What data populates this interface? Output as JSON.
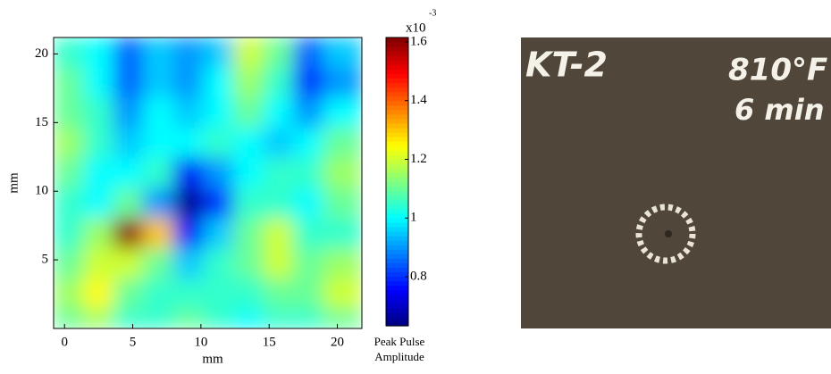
{
  "chart_data": {
    "type": "heatmap",
    "colormap": "jet",
    "xlabel": "mm",
    "ylabel": "mm",
    "x": [
      0.3,
      2.5,
      4.7,
      6.9,
      9.1,
      11.3,
      13.5,
      15.7,
      17.9,
      20.1
    ],
    "y": [
      20.1,
      17.9,
      15.7,
      13.5,
      11.3,
      9.1,
      6.9,
      4.7,
      2.5,
      0.3
    ],
    "z": [
      [
        1.05,
        1.0,
        0.85,
        0.95,
        0.9,
        0.95,
        1.2,
        1.1,
        0.85,
        0.95
      ],
      [
        1.1,
        1.0,
        0.85,
        0.95,
        0.9,
        1.0,
        1.15,
        1.05,
        0.8,
        0.9
      ],
      [
        1.1,
        1.05,
        0.9,
        1.0,
        0.95,
        1.0,
        1.1,
        1.0,
        0.9,
        1.0
      ],
      [
        1.15,
        1.05,
        0.95,
        1.0,
        1.0,
        1.05,
        1.0,
        0.95,
        1.0,
        1.1
      ],
      [
        1.1,
        1.0,
        1.0,
        1.05,
        0.75,
        0.9,
        1.0,
        1.05,
        1.05,
        1.15
      ],
      [
        1.05,
        1.0,
        1.1,
        0.9,
        0.65,
        0.8,
        1.05,
        1.05,
        1.0,
        1.1
      ],
      [
        1.05,
        1.15,
        1.6,
        1.3,
        0.75,
        0.95,
        1.1,
        1.2,
        1.05,
        1.05
      ],
      [
        1.1,
        1.2,
        1.2,
        1.1,
        0.95,
        1.05,
        1.1,
        1.2,
        1.1,
        1.15
      ],
      [
        1.15,
        1.25,
        1.1,
        1.05,
        1.05,
        1.05,
        1.05,
        1.1,
        1.1,
        1.2
      ],
      [
        1.1,
        1.15,
        1.05,
        1.05,
        1.1,
        1.05,
        1.0,
        1.05,
        1.05,
        1.1
      ]
    ],
    "xlim": [
      -0.8,
      21.8
    ],
    "ylim": [
      0,
      21.2
    ],
    "xticks": [
      0,
      5,
      10,
      15,
      20
    ],
    "yticks": [
      5,
      10,
      15,
      20
    ],
    "colorbar": {
      "clim": [
        0.633,
        1.615
      ],
      "ticks": [
        0.8,
        1,
        1.2,
        1.4,
        1.6
      ],
      "multiplier": "x10",
      "exponent": "-3",
      "label_lines": [
        "Peak Pulse",
        "Amplitude"
      ]
    }
  },
  "photo": {
    "labels": [
      "KT-2",
      "810°F",
      "6 min"
    ]
  }
}
